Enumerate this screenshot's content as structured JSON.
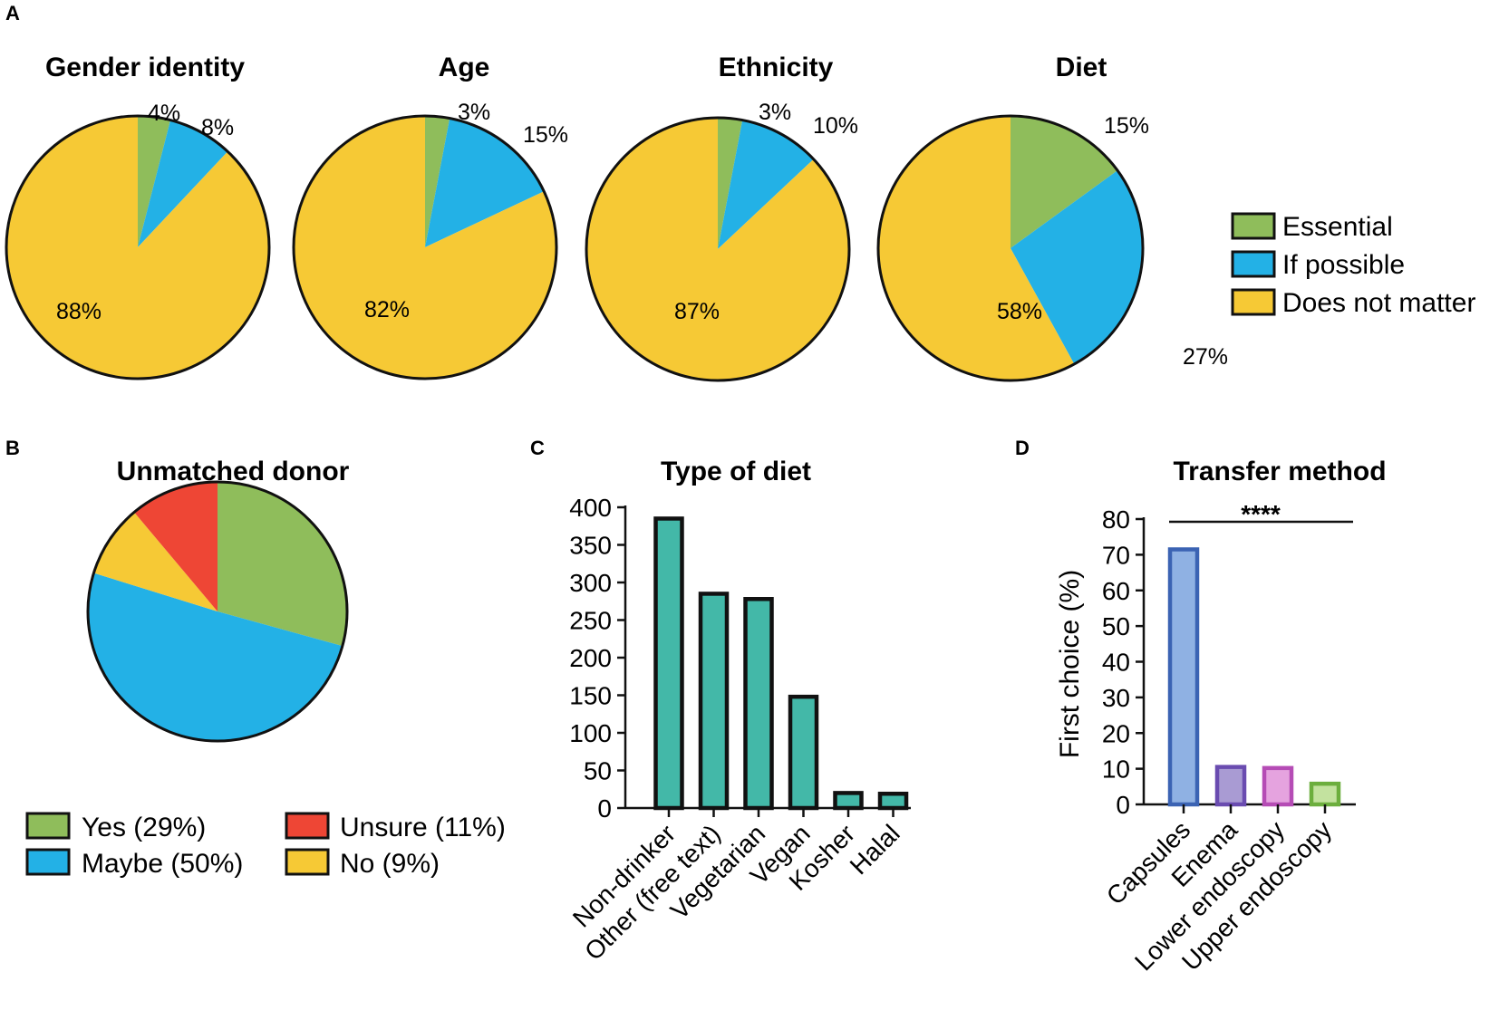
{
  "colors": {
    "essential": "#8fbd5b",
    "if_possible": "#23b1e6",
    "does_not_matter": "#f6c935",
    "unsure": "#ee4635",
    "bar_diet": "#43b8a8",
    "outline": "#111111"
  },
  "panel_labels": {
    "a": "A",
    "b": "B",
    "c": "C",
    "d": "D"
  },
  "chart_data": [
    {
      "id": "gender",
      "type": "pie",
      "title": "Gender identity",
      "slices": [
        {
          "name": "Essential",
          "value": 4,
          "label": "4%",
          "color": "#8fbd5b"
        },
        {
          "name": "If possible",
          "value": 8,
          "label": "8%",
          "color": "#23b1e6"
        },
        {
          "name": "Does not matter",
          "value": 88,
          "label": "88%",
          "color": "#f6c935"
        }
      ]
    },
    {
      "id": "age",
      "type": "pie",
      "title": "Age",
      "slices": [
        {
          "name": "Essential",
          "value": 3,
          "label": "3%",
          "color": "#8fbd5b"
        },
        {
          "name": "If possible",
          "value": 15,
          "label": "15%",
          "color": "#23b1e6"
        },
        {
          "name": "Does not matter",
          "value": 82,
          "label": "82%",
          "color": "#f6c935"
        }
      ]
    },
    {
      "id": "ethnicity",
      "type": "pie",
      "title": "Ethnicity",
      "slices": [
        {
          "name": "Essential",
          "value": 3,
          "label": "3%",
          "color": "#8fbd5b"
        },
        {
          "name": "If possible",
          "value": 10,
          "label": "10%",
          "color": "#23b1e6"
        },
        {
          "name": "Does not matter",
          "value": 87,
          "label": "87%",
          "color": "#f6c935"
        }
      ]
    },
    {
      "id": "diet",
      "type": "pie",
      "title": "Diet",
      "slices": [
        {
          "name": "Essential",
          "value": 15,
          "label": "15%",
          "color": "#8fbd5b"
        },
        {
          "name": "If possible",
          "value": 27,
          "label": "27%",
          "color": "#23b1e6"
        },
        {
          "name": "Does not matter",
          "value": 58,
          "label": "58%",
          "color": "#f6c935"
        }
      ]
    },
    {
      "id": "unmatched",
      "type": "pie",
      "title": "Unmatched donor",
      "slices": [
        {
          "name": "Yes",
          "value": 29,
          "color": "#8fbd5b"
        },
        {
          "name": "Maybe",
          "value": 50,
          "color": "#23b1e6"
        },
        {
          "name": "No",
          "value": 9,
          "color": "#f6c935"
        },
        {
          "name": "Unsure",
          "value": 11,
          "color": "#ee4635"
        }
      ]
    },
    {
      "id": "type_of_diet",
      "type": "bar",
      "title": "Type of diet",
      "categories": [
        "Non-drinker",
        "Other (free text)",
        "Vegetarian",
        "Vegan",
        "Kosher",
        "Halal"
      ],
      "values": [
        385,
        285,
        278,
        148,
        20,
        19
      ],
      "ylim": [
        0,
        400
      ],
      "yticks": [
        0,
        50,
        100,
        150,
        200,
        250,
        300,
        350,
        400
      ],
      "xlabel": "",
      "ylabel": ""
    },
    {
      "id": "transfer_method",
      "type": "bar",
      "title": "Transfer method",
      "categories": [
        "Capsules",
        "Enema",
        "Lower endoscopy",
        "Upper endoscopy"
      ],
      "values": [
        71.5,
        10.5,
        10.2,
        5.8
      ],
      "fills": [
        "#8fb1e3",
        "#a99bd3",
        "#e5a3df",
        "#c3e29f"
      ],
      "strokes": [
        "#3b63b3",
        "#6a4cb0",
        "#b54cb5",
        "#6cae3e"
      ],
      "ylim": [
        0,
        80
      ],
      "yticks": [
        0,
        10,
        20,
        30,
        40,
        50,
        60,
        70,
        80
      ],
      "xlabel": "",
      "ylabel": "First choice (%)",
      "annotation": "****"
    }
  ],
  "legend_a": [
    {
      "label": "Essential",
      "color": "#8fbd5b"
    },
    {
      "label": "If possible",
      "color": "#23b1e6"
    },
    {
      "label": "Does not matter",
      "color": "#f6c935"
    }
  ],
  "legend_b": [
    {
      "label": "Yes (29%)",
      "color": "#8fbd5b"
    },
    {
      "label": "Maybe (50%)",
      "color": "#23b1e6"
    },
    {
      "label": "Unsure (11%)",
      "color": "#ee4635"
    },
    {
      "label": "No (9%)",
      "color": "#f6c935"
    }
  ]
}
